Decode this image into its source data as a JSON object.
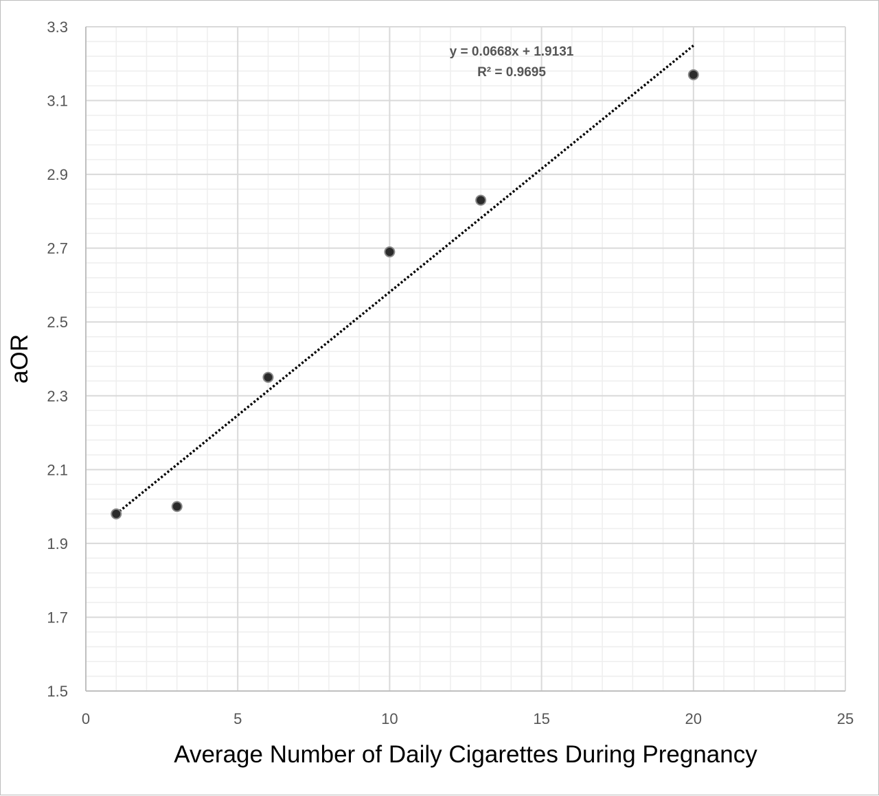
{
  "chart_data": {
    "type": "scatter",
    "xlabel": "Average Number of Daily Cigarettes During Pregnancy",
    "ylabel": "aOR",
    "xlim": [
      0,
      25
    ],
    "ylim": [
      1.5,
      3.3
    ],
    "x_ticks": [
      "0",
      "5",
      "10",
      "15",
      "20",
      "25"
    ],
    "y_ticks": [
      "1.5",
      "1.7",
      "1.9",
      "2.1",
      "2.3",
      "2.5",
      "2.7",
      "2.9",
      "3.1",
      "3.3"
    ],
    "grid": true,
    "points": [
      {
        "x": 1,
        "y": 1.98
      },
      {
        "x": 3,
        "y": 2.0
      },
      {
        "x": 6,
        "y": 2.35
      },
      {
        "x": 10,
        "y": 2.69
      },
      {
        "x": 13,
        "y": 2.83
      },
      {
        "x": 20,
        "y": 3.17
      }
    ],
    "trendline": {
      "type": "linear",
      "slope": 0.0668,
      "intercept": 1.9131,
      "x_range": [
        1,
        20
      ],
      "equation_label": "y = 0.0668x + 1.9131",
      "r2_label": "R² = 0.9695"
    },
    "colors": {
      "marker_fill": "#2b2b2b",
      "marker_edge": "#888888",
      "trendline": "#000000",
      "major_grid": "#d9d9d9",
      "minor_grid": "#eeeeee",
      "tick_text": "#555555"
    }
  }
}
